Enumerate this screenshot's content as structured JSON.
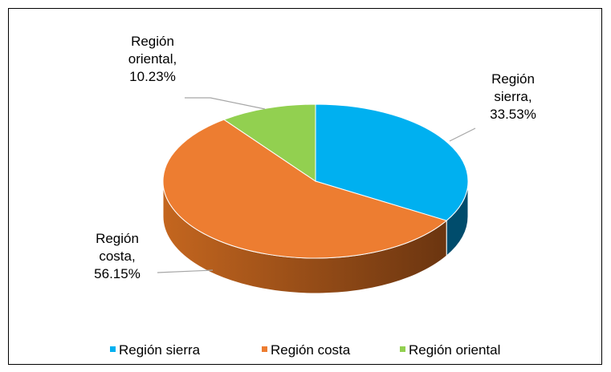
{
  "chart_data": {
    "type": "pie3d",
    "categories": [
      "Región sierra",
      "Región costa",
      "Región oriental"
    ],
    "values": [
      33.53,
      56.15,
      10.23
    ],
    "value_labels": [
      "Región sierra, 33.53%",
      "Región costa, 56.15%",
      "Región oriental, 10.23%"
    ],
    "colors": [
      "#00b0f0",
      "#ed7d31",
      "#92d050"
    ],
    "legend": "bottom"
  }
}
